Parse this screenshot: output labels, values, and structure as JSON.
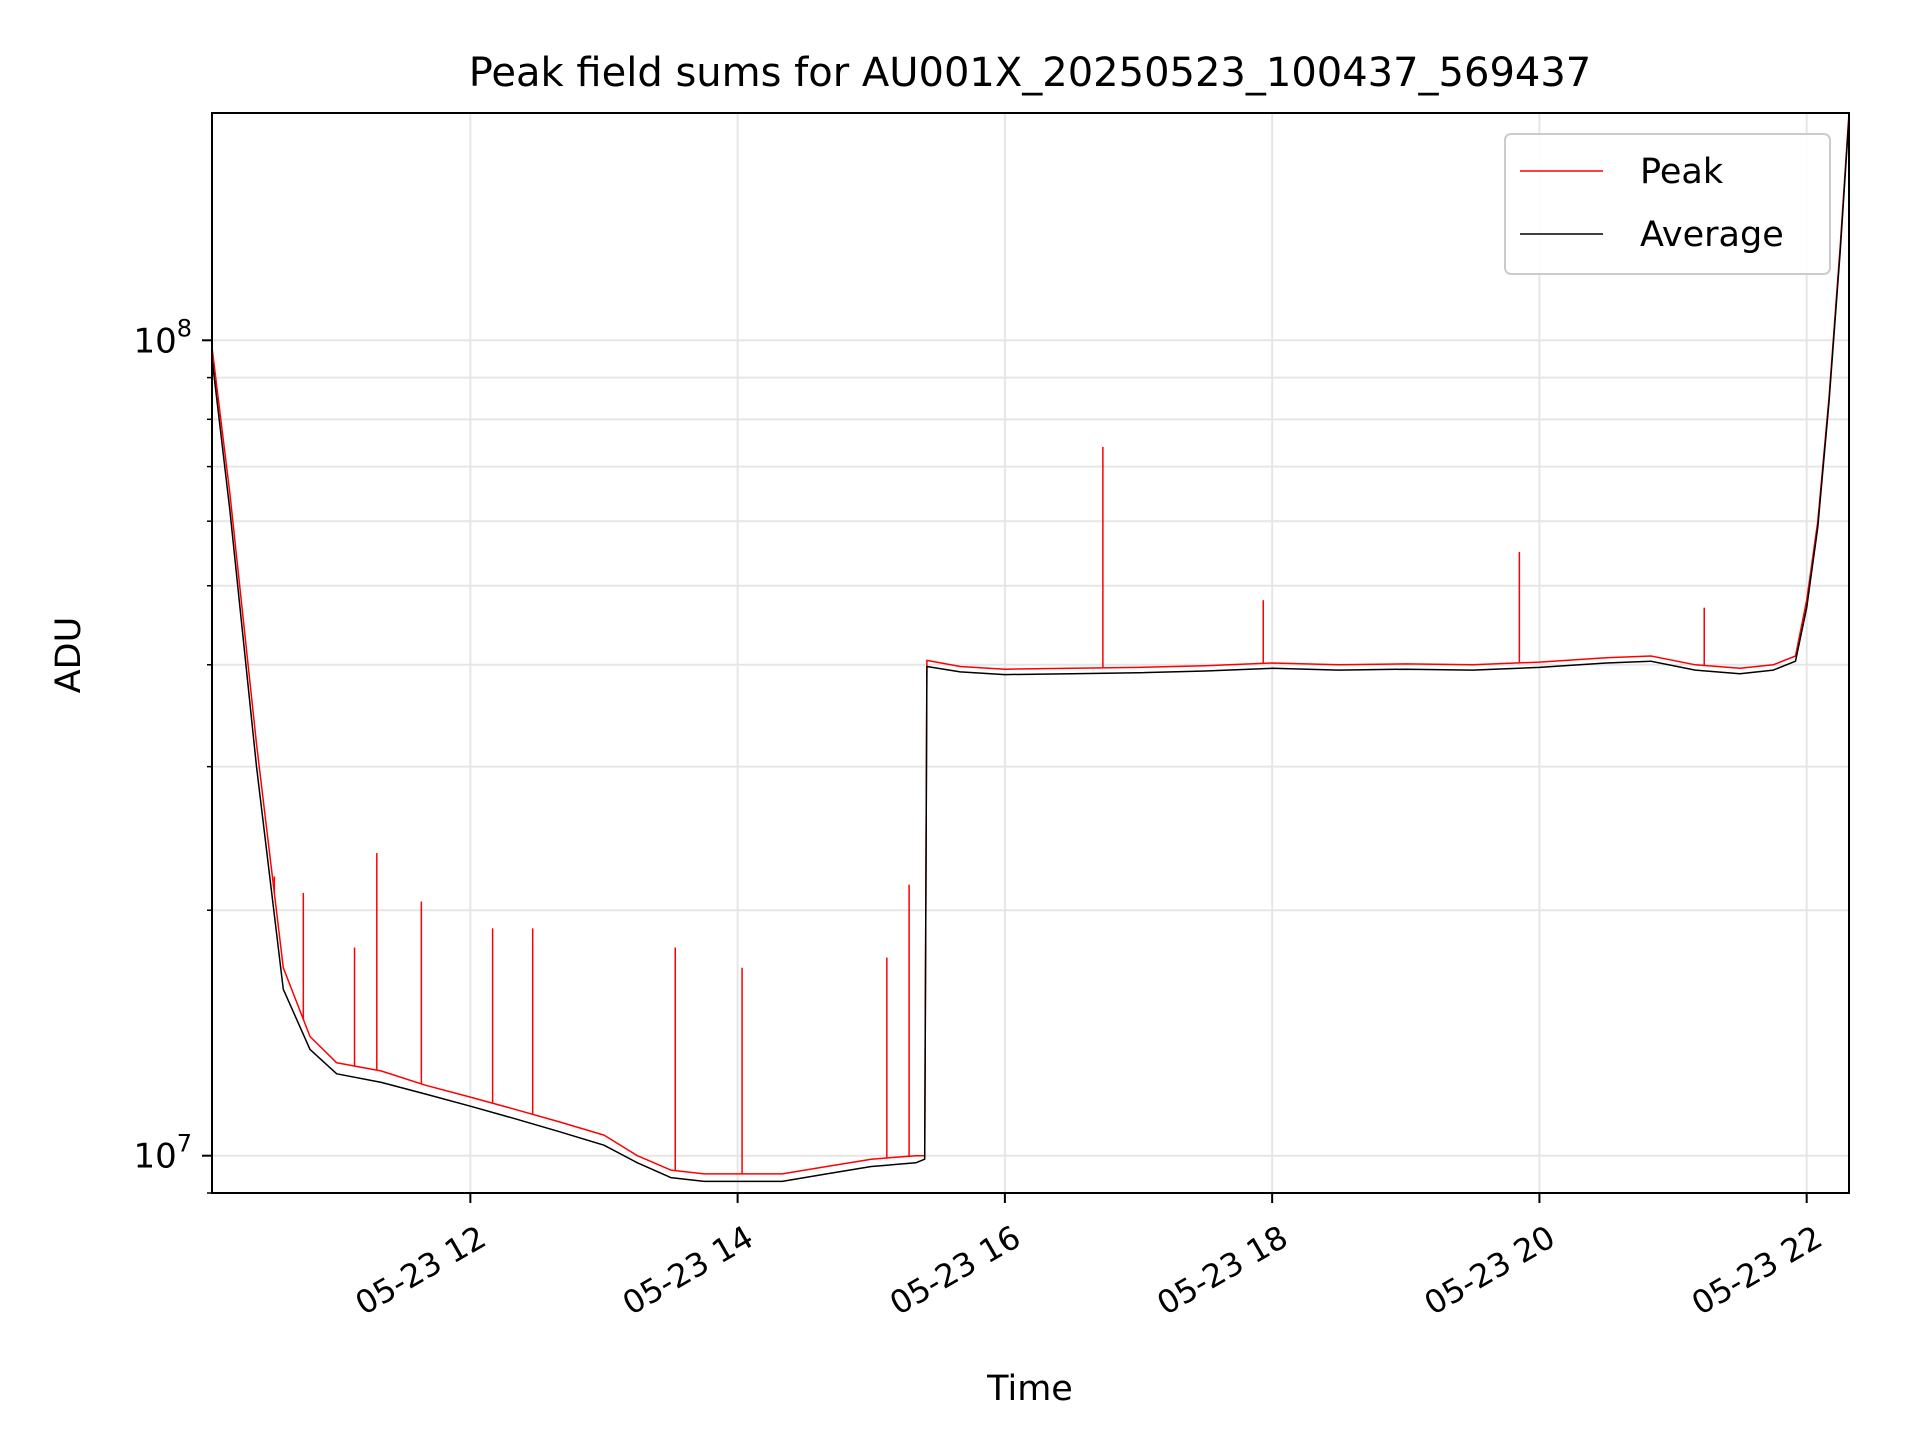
{
  "chart_data": {
    "type": "line",
    "title": "Peak field sums for AU001X_20250523_100437_569437",
    "xlabel": "Time",
    "ylabel": "ADU",
    "yscale": "log",
    "grid": true,
    "legend_position": "top-right",
    "xlim": [
      "2025-05-23 10:04",
      "2025-05-23 22:19"
    ],
    "ylim": [
      9000000,
      190000000
    ],
    "x_ticks": [
      {
        "value": "2025-05-23 12:00",
        "label": "05-23 12"
      },
      {
        "value": "2025-05-23 14:00",
        "label": "05-23 14"
      },
      {
        "value": "2025-05-23 16:00",
        "label": "05-23 16"
      },
      {
        "value": "2025-05-23 18:00",
        "label": "05-23 18"
      },
      {
        "value": "2025-05-23 20:00",
        "label": "05-23 20"
      },
      {
        "value": "2025-05-23 22:00",
        "label": "05-23 22"
      }
    ],
    "y_ticks": [
      {
        "value": 10000000,
        "label_base": "10",
        "label_exp": "7"
      },
      {
        "value": 100000000,
        "label_base": "10",
        "label_exp": "8"
      }
    ],
    "series": [
      {
        "name": "Peak",
        "color": "#ff0000",
        "x": [
          "2025-05-23 10:04",
          "2025-05-23 10:12",
          "2025-05-23 10:24",
          "2025-05-23 10:36",
          "2025-05-23 10:48",
          "2025-05-23 11:00",
          "2025-05-23 11:20",
          "2025-05-23 11:40",
          "2025-05-23 12:00",
          "2025-05-23 12:20",
          "2025-05-23 12:40",
          "2025-05-23 13:00",
          "2025-05-23 13:15",
          "2025-05-23 13:30",
          "2025-05-23 13:45",
          "2025-05-23 14:00",
          "2025-05-23 14:20",
          "2025-05-23 14:40",
          "2025-05-23 15:00",
          "2025-05-23 15:20",
          "2025-05-23 15:24",
          "2025-05-23 15:25",
          "2025-05-23 15:40",
          "2025-05-23 16:00",
          "2025-05-23 16:30",
          "2025-05-23 17:00",
          "2025-05-23 17:30",
          "2025-05-23 18:00",
          "2025-05-23 18:30",
          "2025-05-23 19:00",
          "2025-05-23 19:30",
          "2025-05-23 20:00",
          "2025-05-23 20:30",
          "2025-05-23 20:50",
          "2025-05-23 21:10",
          "2025-05-23 21:30",
          "2025-05-23 21:45",
          "2025-05-23 21:55",
          "2025-05-23 22:00",
          "2025-05-23 22:05",
          "2025-05-23 22:10",
          "2025-05-23 22:15",
          "2025-05-23 22:19"
        ],
        "y": [
          98000000,
          65000000,
          32000000,
          17000000,
          14000000,
          13000000,
          12700000,
          12200000,
          11800000,
          11400000,
          11000000,
          10600000,
          10000000,
          9600000,
          9500000,
          9500000,
          9500000,
          9700000,
          9900000,
          10000000,
          10000000,
          40500000,
          39800000,
          39500000,
          39600000,
          39700000,
          39900000,
          40200000,
          40000000,
          40100000,
          40000000,
          40300000,
          40800000,
          41000000,
          40000000,
          39600000,
          40000000,
          41000000,
          48000000,
          60000000,
          85000000,
          130000000,
          190000000
        ]
      },
      {
        "name": "Average",
        "color": "#000000",
        "x": [
          "2025-05-23 10:04",
          "2025-05-23 10:12",
          "2025-05-23 10:24",
          "2025-05-23 10:36",
          "2025-05-23 10:48",
          "2025-05-23 11:00",
          "2025-05-23 11:20",
          "2025-05-23 11:40",
          "2025-05-23 12:00",
          "2025-05-23 12:20",
          "2025-05-23 12:40",
          "2025-05-23 13:00",
          "2025-05-23 13:15",
          "2025-05-23 13:30",
          "2025-05-23 13:45",
          "2025-05-23 14:00",
          "2025-05-23 14:20",
          "2025-05-23 14:40",
          "2025-05-23 15:00",
          "2025-05-23 15:20",
          "2025-05-23 15:24",
          "2025-05-23 15:25",
          "2025-05-23 15:40",
          "2025-05-23 16:00",
          "2025-05-23 16:30",
          "2025-05-23 17:00",
          "2025-05-23 17:30",
          "2025-05-23 18:00",
          "2025-05-23 18:30",
          "2025-05-23 19:00",
          "2025-05-23 19:30",
          "2025-05-23 20:00",
          "2025-05-23 20:30",
          "2025-05-23 20:50",
          "2025-05-23 21:10",
          "2025-05-23 21:30",
          "2025-05-23 21:45",
          "2025-05-23 21:55",
          "2025-05-23 22:00",
          "2025-05-23 22:05",
          "2025-05-23 22:10",
          "2025-05-23 22:15",
          "2025-05-23 22:19"
        ],
        "y": [
          95000000,
          62000000,
          30000000,
          16000000,
          13500000,
          12600000,
          12300000,
          11900000,
          11500000,
          11100000,
          10700000,
          10300000,
          9800000,
          9400000,
          9300000,
          9300000,
          9300000,
          9500000,
          9700000,
          9800000,
          9900000,
          39800000,
          39200000,
          38900000,
          39000000,
          39100000,
          39300000,
          39600000,
          39400000,
          39500000,
          39400000,
          39700000,
          40200000,
          40400000,
          39400000,
          39000000,
          39400000,
          40400000,
          47000000,
          59000000,
          84000000,
          128000000,
          188000000
        ]
      }
    ],
    "spikes": [
      {
        "series": "Peak",
        "x": "2025-05-23 10:32",
        "y": 22000000
      },
      {
        "series": "Peak",
        "x": "2025-05-23 10:45",
        "y": 21000000
      },
      {
        "series": "Peak",
        "x": "2025-05-23 11:08",
        "y": 18000000
      },
      {
        "series": "Peak",
        "x": "2025-05-23 11:18",
        "y": 23500000
      },
      {
        "series": "Peak",
        "x": "2025-05-23 11:38",
        "y": 20500000
      },
      {
        "series": "Peak",
        "x": "2025-05-23 12:10",
        "y": 19000000
      },
      {
        "series": "Peak",
        "x": "2025-05-23 12:28",
        "y": 19000000
      },
      {
        "series": "Peak",
        "x": "2025-05-23 13:32",
        "y": 18000000
      },
      {
        "series": "Peak",
        "x": "2025-05-23 14:02",
        "y": 17000000
      },
      {
        "series": "Peak",
        "x": "2025-05-23 15:07",
        "y": 17500000
      },
      {
        "series": "Peak",
        "x": "2025-05-23 15:17",
        "y": 21500000
      },
      {
        "series": "Peak",
        "x": "2025-05-23 16:44",
        "y": 74000000
      },
      {
        "series": "Peak",
        "x": "2025-05-23 17:56",
        "y": 48000000
      },
      {
        "series": "Peak",
        "x": "2025-05-23 19:51",
        "y": 55000000
      },
      {
        "series": "Peak",
        "x": "2025-05-23 21:14",
        "y": 47000000
      }
    ]
  }
}
